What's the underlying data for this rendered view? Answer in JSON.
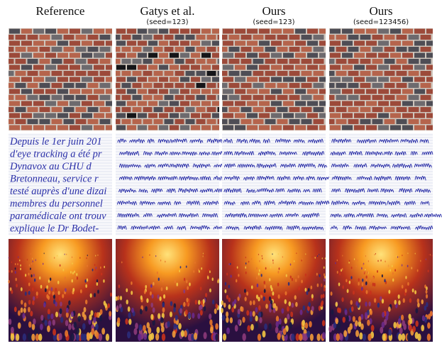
{
  "figure": {
    "columns": [
      {
        "title": "Reference"
      },
      {
        "title": "Gatys et al.",
        "subtitle": "(seed=123)"
      },
      {
        "title": "Ours",
        "subtitle": "(seed=123)"
      },
      {
        "title": "Ours",
        "subtitle": "(seed=123456)"
      }
    ],
    "reference_text": [
      "Depuis le 1er juin 201",
      "d'eye tracking a été pr",
      "Dynavox au CHU d",
      "Bretonneau, service r",
      "testé auprès d'une dizai",
      "membres du personnel",
      "paramédicale ont trouv",
      "explique le Dr Bodet-"
    ]
  }
}
